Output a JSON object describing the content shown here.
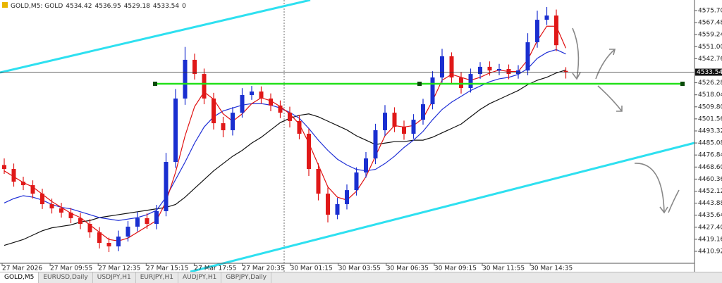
{
  "chart_data": {
    "type": "candlestick",
    "title": "GOLD,M5: GOLD",
    "header_tail": "0",
    "open": [
      4470.0,
      4467.3,
      4458.6,
      4456.2,
      4450.4,
      4443.2,
      4440.3,
      4437.4,
      4433.6,
      4429.7,
      4423.9,
      4416.7,
      4414.3,
      4421.0,
      4427.8,
      4433.6,
      4429.7,
      4438.4,
      4472.1,
      4515.5,
      4542.0,
      4532.3,
      4515.5,
      4498.6,
      4493.8,
      4505.8,
      4517.9,
      4520.3,
      4515.5,
      4510.7,
      4505.8,
      4500.1,
      4491.4,
      4467.3,
      4450.4,
      4436.0,
      4443.2,
      4452.8,
      4464.9,
      4474.5,
      4493.8,
      4505.8,
      4496.2,
      4491.4,
      4501.0,
      4511.6,
      4529.9,
      4544.4,
      4529.9,
      4522.7,
      4532.3,
      4537.2,
      4534.7,
      4535.7,
      4532.3,
      4534.7,
      4554.0,
      4569.4,
      4572.3,
      4534.42
    ],
    "high": [
      4474.5,
      4471.0,
      4462.0,
      4459.5,
      4453.8,
      4447.0,
      4444.1,
      4440.6,
      4437.2,
      4432.9,
      4427.5,
      4420.3,
      4425.1,
      4431.6,
      4438.0,
      4436.9,
      4442.7,
      4478.3,
      4522.0,
      4550.8,
      4546.2,
      4536.0,
      4519.4,
      4503.0,
      4509.7,
      4522.6,
      4524.1,
      4523.8,
      4519.0,
      4514.2,
      4509.9,
      4504.3,
      4494.8,
      4471.2,
      4454.6,
      4447.5,
      4456.7,
      4468.4,
      4478.9,
      4498.2,
      4511.0,
      4509.5,
      4500.4,
      4504.8,
      4515.3,
      4534.2,
      4549.5,
      4547.1,
      4533.6,
      4536.0,
      4540.4,
      4540.9,
      4539.2,
      4538.8,
      4538.3,
      4560.2,
      4575.6,
      4578.1,
      4576.4,
      4536.95
    ],
    "low": [
      4463.9,
      4455.2,
      4452.8,
      4447.1,
      4439.9,
      4436.8,
      4434.0,
      4430.2,
      4426.1,
      4420.2,
      4412.9,
      4410.4,
      4411.0,
      4417.6,
      4424.5,
      4426.3,
      4426.0,
      4434.9,
      4468.0,
      4511.2,
      4528.5,
      4511.6,
      4494.3,
      4489.0,
      4490.2,
      4502.4,
      4514.6,
      4511.9,
      4506.8,
      4502.1,
      4495.7,
      4487.6,
      4462.5,
      4445.8,
      4430.7,
      4432.9,
      4439.6,
      4449.1,
      4461.3,
      4470.6,
      4489.9,
      4492.5,
      4487.3,
      4488.0,
      4497.6,
      4508.1,
      4526.4,
      4525.8,
      4518.9,
      4519.6,
      4529.0,
      4531.2,
      4531.5,
      4528.7,
      4529.1,
      4531.4,
      4550.3,
      4565.8,
      4547.9,
      4529.18
    ],
    "close": [
      4467.3,
      4458.6,
      4456.2,
      4450.4,
      4443.2,
      4440.3,
      4437.4,
      4433.6,
      4429.7,
      4423.9,
      4416.7,
      4414.3,
      4421.0,
      4427.8,
      4433.6,
      4429.7,
      4438.4,
      4472.1,
      4515.5,
      4542.0,
      4532.3,
      4515.5,
      4498.6,
      4493.8,
      4505.8,
      4517.9,
      4520.3,
      4515.5,
      4510.7,
      4505.8,
      4500.1,
      4491.4,
      4467.3,
      4450.4,
      4436.0,
      4443.2,
      4452.8,
      4464.9,
      4474.5,
      4493.8,
      4505.8,
      4496.2,
      4491.4,
      4501.0,
      4511.6,
      4529.9,
      4544.4,
      4529.9,
      4522.7,
      4532.3,
      4537.2,
      4534.7,
      4535.7,
      4532.3,
      4534.7,
      4554.0,
      4569.4,
      4572.3,
      4552.0,
      4533.54
    ],
    "up_color": "#1a2fd0",
    "down_color": "#e01818",
    "lines": [
      {
        "color": "#111111",
        "values": [
          4415,
          4417,
          4419,
          4422,
          4425,
          4427,
          4428,
          4429,
          4431,
          4432,
          4434,
          4435,
          4436,
          4437,
          4438,
          4439,
          4440,
          4441,
          4443,
          4448,
          4454,
          4460,
          4466,
          4471,
          4476,
          4480,
          4485,
          4489,
          4494,
          4499,
          4502,
          4504,
          4505,
          4503,
          4500,
          4497,
          4494,
          4490,
          4487,
          4484,
          4485,
          4486,
          4486,
          4487,
          4487,
          4489,
          4492,
          4495,
          4498,
          4503,
          4508,
          4512,
          4515,
          4518,
          4521,
          4525,
          4528,
          4530,
          4533,
          4535
        ]
      },
      {
        "color": "#1f2fd6",
        "values": [
          4444,
          4447,
          4449,
          4448,
          4446,
          4443,
          4441,
          4440,
          4438,
          4436,
          4434,
          4433,
          4432,
          4433,
          4434,
          4436,
          4439,
          4448,
          4460,
          4472,
          4485,
          4496,
          4503,
          4507,
          4509,
          4511,
          4512,
          4512,
          4511,
          4509,
          4506,
          4502,
          4495,
          4487,
          4480,
          4474,
          4470,
          4467,
          4466,
          4467,
          4471,
          4476,
          4482,
          4487,
          4493,
          4501,
          4508,
          4513,
          4517,
          4521,
          4524,
          4527,
          4529,
          4530,
          4532,
          4536,
          4543,
          4547,
          4549,
          4546
        ]
      },
      {
        "color": "#e01010",
        "values": [
          4466,
          4462,
          4458,
          4455,
          4450,
          4445,
          4441,
          4437,
          4434,
          4429,
          4424,
          4419,
          4418,
          4420,
          4424,
          4428,
          4432,
          4445,
          4465,
          4490,
          4510,
          4520,
          4515,
          4505,
          4500,
          4505,
          4512,
          4516,
          4514,
          4510,
          4505,
          4498,
          4485,
          4470,
          4455,
          4448,
          4446,
          4452,
          4462,
          4476,
          4490,
          4497,
          4496,
          4497,
          4502,
          4514,
          4528,
          4532,
          4530,
          4528,
          4530,
          4533,
          4535,
          4534,
          4534,
          4542,
          4555,
          4565,
          4565,
          4550
        ]
      }
    ],
    "ylim": [
      4397.43,
      4582.93
    ],
    "yticks": [
      {
        "value": 4575.7,
        "label": "4575.70"
      },
      {
        "value": 4567.48,
        "label": "4567.48"
      },
      {
        "value": 4559.24,
        "label": "4559.24"
      },
      {
        "value": 4551.0,
        "label": "4551.00"
      },
      {
        "value": 4542.76,
        "label": "4542.76"
      },
      {
        "value": 4526.28,
        "label": "4526.28"
      },
      {
        "value": 4518.04,
        "label": "4518.04"
      },
      {
        "value": 4509.8,
        "label": "4509.80"
      },
      {
        "value": 4501.56,
        "label": "4501.56"
      },
      {
        "value": 4493.32,
        "label": "4493.32"
      },
      {
        "value": 4485.08,
        "label": "4485.08"
      },
      {
        "value": 4476.84,
        "label": "4476.84"
      },
      {
        "value": 4468.6,
        "label": "4468.60"
      },
      {
        "value": 4460.36,
        "label": "4460.36"
      },
      {
        "value": 4452.12,
        "label": "4452.12"
      },
      {
        "value": 4443.88,
        "label": "4443.88"
      },
      {
        "value": 4435.64,
        "label": "4435.64"
      },
      {
        "value": 4427.4,
        "label": "4427.40"
      },
      {
        "value": 4419.16,
        "label": "4419.16"
      },
      {
        "value": 4410.92,
        "label": "4410.92"
      }
    ],
    "time_labels": [
      "27 Mar 2026",
      "27 Mar 09:55",
      "27 Mar 12:35",
      "27 Mar 15:15",
      "27 Mar 17:55",
      "27 Mar 20:35",
      "30 Mar 01:15",
      "30 Mar 03:55",
      "30 Mar 06:35",
      "30 Mar 09:15",
      "30 Mar 11:55",
      "30 Mar 14:35"
    ]
  },
  "tabs": [
    "GOLD,M5",
    "EURUSD,Daily",
    "USDJPY,H1",
    "EURJPY,H1",
    "AUDJPY,H1",
    "GBPJPY,Daily"
  ]
}
